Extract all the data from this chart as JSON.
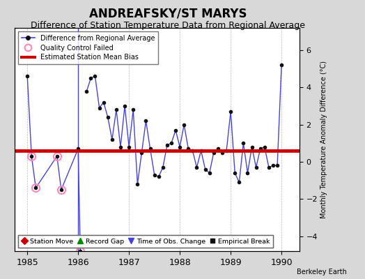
{
  "title": "ANDREAFSKY/ST MARYS",
  "subtitle": "Difference of Station Temperature Data from Regional Average",
  "ylabel_right": "Monthly Temperature Anomaly Difference (°C)",
  "xlim": [
    1984.75,
    1990.35
  ],
  "ylim": [
    -4.8,
    7.2
  ],
  "yticks": [
    -4,
    -2,
    0,
    2,
    4,
    6
  ],
  "xticks": [
    1985,
    1986,
    1987,
    1988,
    1989,
    1990
  ],
  "mean_bias": 0.6,
  "background_color": "#d8d8d8",
  "plot_background": "#ffffff",
  "line_color": "#4444dd",
  "marker_color": "#111111",
  "bias_color": "#cc0000",
  "qc_color": "#ff88bb",
  "title_fontsize": 12,
  "subtitle_fontsize": 9,
  "times": [
    1985.0,
    1985.083,
    1985.167,
    1985.583,
    1985.667,
    1986.0,
    1986.042,
    1986.083,
    1986.167,
    1986.25,
    1986.333,
    1986.417,
    1986.5,
    1986.583,
    1986.667,
    1986.75,
    1986.833,
    1986.917,
    1987.0,
    1987.083,
    1987.167,
    1987.25,
    1987.333,
    1987.417,
    1987.5,
    1987.583,
    1987.667,
    1987.75,
    1987.833,
    1987.917,
    1988.0,
    1988.083,
    1988.167,
    1988.25,
    1988.333,
    1988.417,
    1988.5,
    1988.583,
    1988.667,
    1988.75,
    1988.833,
    1988.917,
    1989.0,
    1989.083,
    1989.167,
    1989.25,
    1989.333,
    1989.417,
    1989.5,
    1989.583,
    1989.667,
    1989.75,
    1989.833,
    1989.917,
    1990.0
  ],
  "values": [
    4.6,
    0.3,
    -1.4,
    0.3,
    -1.5,
    0.7,
    -4.8,
    null,
    3.8,
    4.5,
    4.6,
    2.9,
    3.2,
    2.4,
    1.2,
    2.8,
    0.8,
    3.0,
    0.8,
    2.8,
    -1.2,
    0.5,
    2.2,
    0.7,
    -0.7,
    -0.8,
    -0.3,
    0.9,
    1.0,
    1.7,
    0.8,
    2.0,
    0.7,
    0.6,
    -0.3,
    0.6,
    -0.4,
    -0.6,
    0.5,
    0.7,
    0.5,
    0.6,
    2.7,
    -0.6,
    -1.1,
    1.0,
    -0.6,
    0.8,
    -0.3,
    0.7,
    0.8,
    -0.3,
    -0.2,
    -0.2,
    5.2
  ],
  "qc_failed_times": [
    1985.083,
    1985.167,
    1985.583,
    1985.667,
    1986.042
  ],
  "qc_failed_values": [
    0.3,
    -1.4,
    0.3,
    -1.5,
    -4.8
  ],
  "vline_x": 1986.0,
  "vline_color": "#4444dd"
}
